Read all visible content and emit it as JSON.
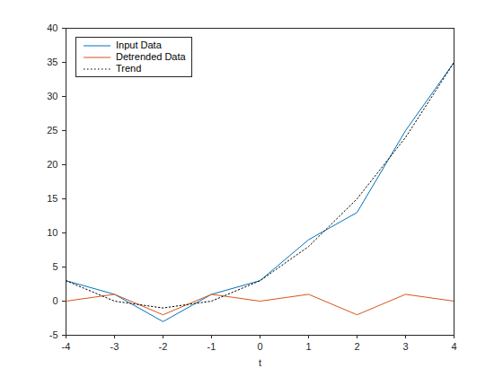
{
  "chart_data": {
    "type": "line",
    "x_label": "t",
    "x": [
      -4,
      -3,
      -2,
      -1,
      0,
      1,
      2,
      3,
      4
    ],
    "series": [
      {
        "name": "Input Data",
        "color": "#0072bd",
        "line_style": "solid",
        "values": [
          3,
          1,
          -3,
          1,
          3,
          9,
          13,
          25,
          35
        ]
      },
      {
        "name": "Detrended Data",
        "color": "#d95319",
        "line_style": "solid",
        "values": [
          0,
          1,
          -2,
          1,
          0,
          1,
          -2,
          1,
          0
        ]
      },
      {
        "name": "Trend",
        "color": "#000000",
        "line_style": "dotted",
        "values": [
          3,
          0,
          -1,
          0,
          3,
          8,
          15,
          24,
          35
        ]
      }
    ],
    "xlim": [
      -4,
      4
    ],
    "xticks": [
      -4,
      -3,
      -2,
      -1,
      0,
      1,
      2,
      3,
      4
    ],
    "ylim": [
      -5,
      40
    ],
    "yticks": [
      -5,
      0,
      5,
      10,
      15,
      20,
      25,
      30,
      35,
      40
    ],
    "grid": false,
    "legend": "upper left"
  }
}
